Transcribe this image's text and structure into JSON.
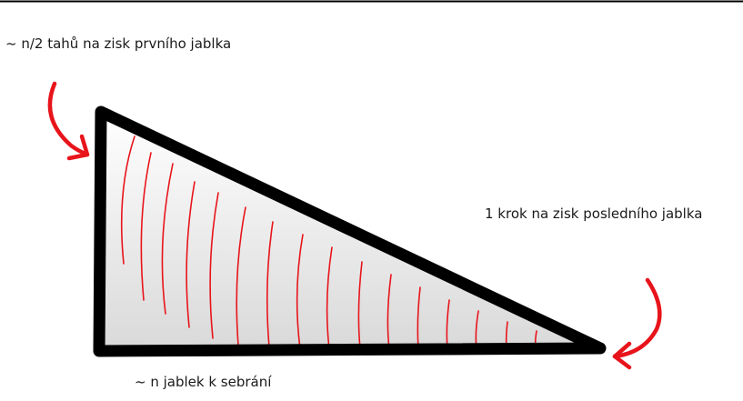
{
  "labels": {
    "first_apple_moves": "~ n/2 tahů na zisk prvního jablka",
    "last_apple_step": "1 krok na zisk posledního jablka",
    "apples_to_collect": "~ n jablek k sebrání"
  },
  "colors": {
    "outline": "#000000",
    "hatch": "#e8141b",
    "arrow": "#e8141b",
    "fill_top": "#ffffff",
    "fill_bottom": "#d9d9d9"
  }
}
